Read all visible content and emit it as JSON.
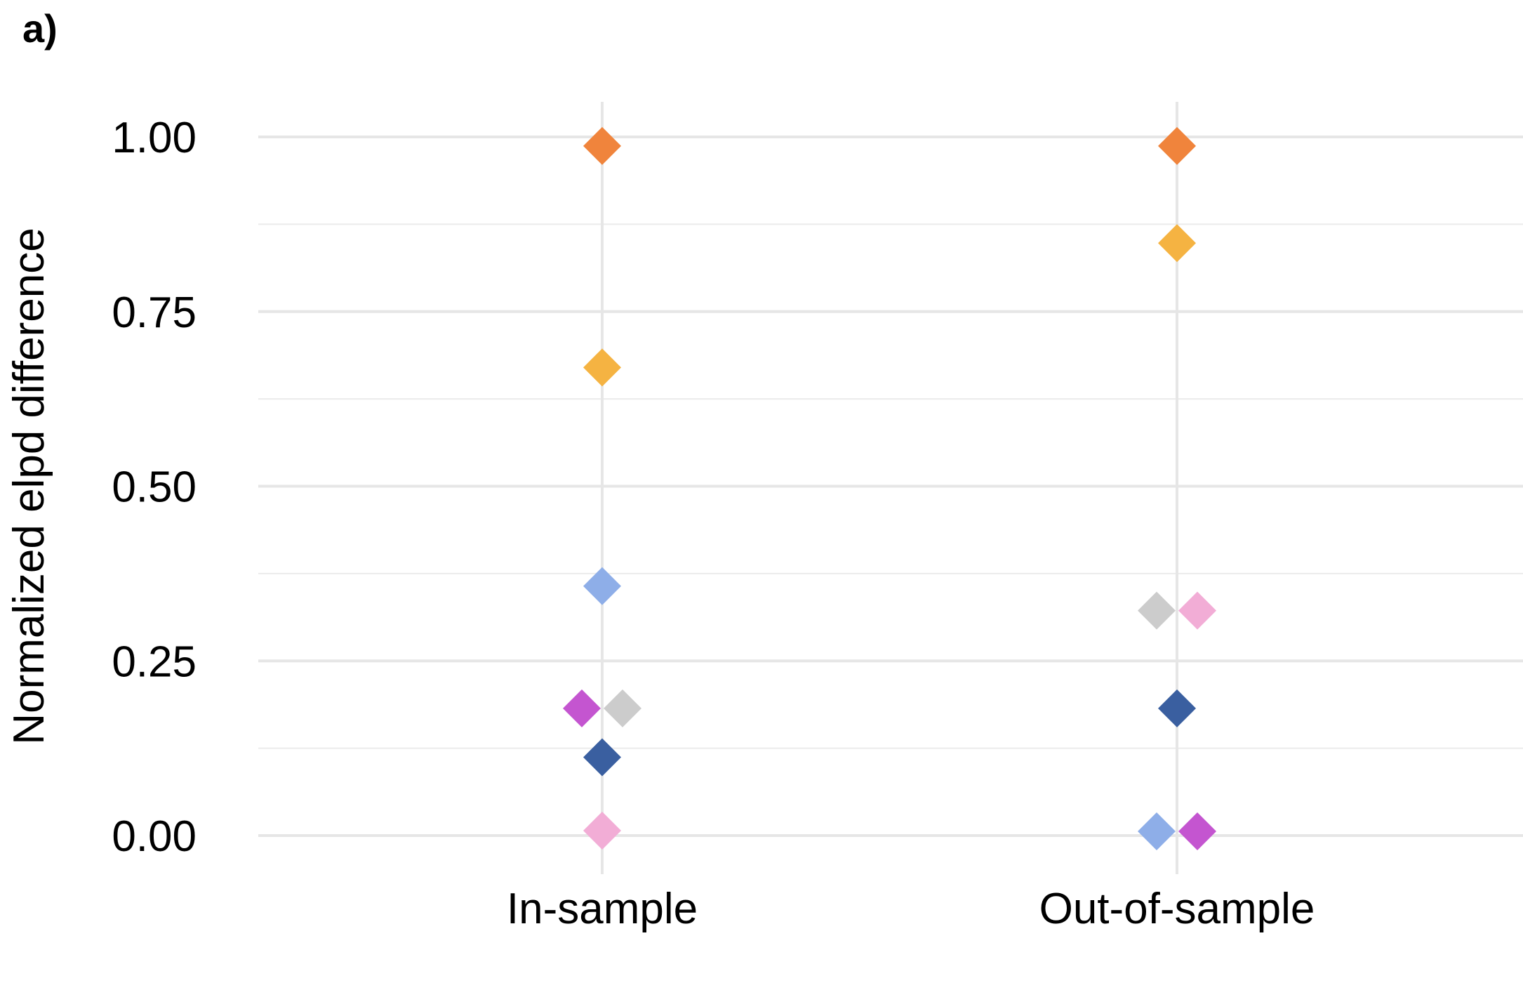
{
  "panel_label": "a)",
  "chart_data": {
    "type": "scatter",
    "title": "",
    "xlabel": "",
    "ylabel": "Normalized elpd difference",
    "categories": [
      "In-sample",
      "Out-of-sample"
    ],
    "ylim": [
      -0.05,
      1.05
    ],
    "y_ticks": [
      0.0,
      0.25,
      0.5,
      0.75,
      1.0
    ],
    "y_tick_labels": [
      "0.00",
      "0.25",
      "0.50",
      "0.75",
      "1.00"
    ],
    "grid": true,
    "marker": "diamond",
    "points": [
      {
        "category": "In-sample",
        "y": 0.987,
        "color": "#F0843C",
        "dodge": 0
      },
      {
        "category": "In-sample",
        "y": 0.67,
        "color": "#F5B342",
        "dodge": 0
      },
      {
        "category": "In-sample",
        "y": 0.357,
        "color": "#8EAEE8",
        "dodge": 0
      },
      {
        "category": "In-sample",
        "y": 0.182,
        "color": "#C455D0",
        "dodge": -1
      },
      {
        "category": "In-sample",
        "y": 0.182,
        "color": "#CCCCCC",
        "dodge": 1
      },
      {
        "category": "In-sample",
        "y": 0.112,
        "color": "#3A5FA0",
        "dodge": 0
      },
      {
        "category": "In-sample",
        "y": 0.007,
        "color": "#F2ADD6",
        "dodge": 0
      },
      {
        "category": "Out-of-sample",
        "y": 0.987,
        "color": "#F0843C",
        "dodge": 0
      },
      {
        "category": "Out-of-sample",
        "y": 0.848,
        "color": "#F5B342",
        "dodge": 0
      },
      {
        "category": "Out-of-sample",
        "y": 0.322,
        "color": "#CCCCCC",
        "dodge": -1
      },
      {
        "category": "Out-of-sample",
        "y": 0.322,
        "color": "#F2ADD6",
        "dodge": 1
      },
      {
        "category": "Out-of-sample",
        "y": 0.182,
        "color": "#3A5FA0",
        "dodge": 0
      },
      {
        "category": "Out-of-sample",
        "y": 0.006,
        "color": "#8EAEE8",
        "dodge": -1
      },
      {
        "category": "Out-of-sample",
        "y": 0.006,
        "color": "#C455D0",
        "dodge": 1
      }
    ]
  }
}
